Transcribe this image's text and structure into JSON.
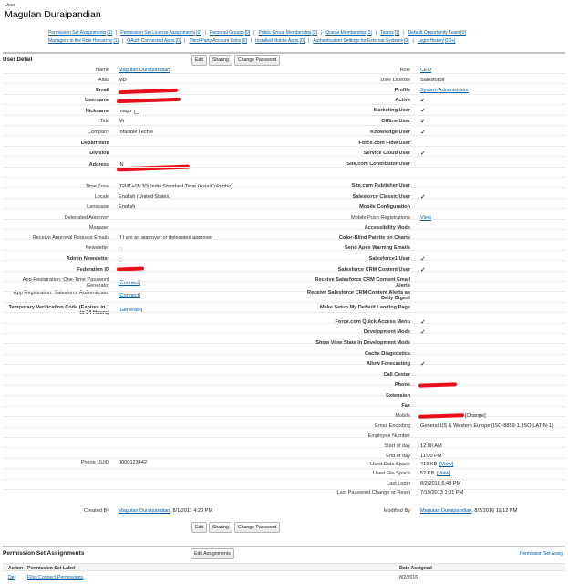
{
  "header": {
    "sub": "User",
    "title": "Magulan Duraipandian"
  },
  "related_links": {
    "row1": [
      {
        "label": "Permission Set Assignments",
        "count": "[1]"
      },
      {
        "label": "Permission Set License Assignments",
        "count": "[0]"
      },
      {
        "label": "Personal Groups",
        "count": "[0]"
      },
      {
        "label": "Public Group Membership",
        "count": "[3]"
      },
      {
        "label": "Queue Membership",
        "count": "[1]"
      },
      {
        "label": "Teams",
        "count": "[1]"
      },
      {
        "label": "Default Opportunity Team",
        "count": "[0]"
      }
    ],
    "row2": [
      {
        "label": "Managers in the Role Hierarchy",
        "count": "[1]"
      },
      {
        "label": "OAuth Connected Apps",
        "count": "[0]"
      },
      {
        "label": "Third-Party Account Links",
        "count": "[0]"
      },
      {
        "label": "Installed Mobile Apps",
        "count": "[0]"
      },
      {
        "label": "Authentication Settings for External Systems",
        "count": "[0]"
      },
      {
        "label": "Login History",
        "count": "[10+]"
      }
    ]
  },
  "section_title": "User Detail",
  "buttons": {
    "edit": "Edit",
    "sharing": "Sharing",
    "change_password": "Change Password"
  },
  "left_fields": [
    {
      "label": "Name",
      "value": "Magulan Duraipandian"
    },
    {
      "label": "Alias",
      "value": "MD"
    },
    {
      "label": "Email",
      "value": ""
    },
    {
      "label": "Username",
      "value": ""
    },
    {
      "label": "Nickname",
      "value": "magu"
    },
    {
      "label": "Title",
      "value": "Mr"
    },
    {
      "label": "Company",
      "value": "Infallible Techie"
    },
    {
      "label": "Department",
      "value": ""
    },
    {
      "label": "Division",
      "value": ""
    },
    {
      "label": "Address",
      "value": "IN"
    },
    {
      "label": "Time Zone",
      "value": "(GMT+05:30) India Standard Time (Asia/Colombo)"
    },
    {
      "label": "Locale",
      "value": "English (United States)"
    },
    {
      "label": "Language",
      "value": "English"
    },
    {
      "label": "Delegated Approver",
      "value": ""
    },
    {
      "label": "Manager",
      "value": ""
    },
    {
      "label": "Receive Approval Request Emails",
      "value": "If I am an approver or delegated approver"
    },
    {
      "label": "Newsletter",
      "value": ""
    },
    {
      "label": "Admin Newsletter",
      "value": ""
    },
    {
      "label": "Federation ID",
      "value": ""
    },
    {
      "label": "App Registration: One-Time Password Generator",
      "value": "[Connect]"
    },
    {
      "label": "App Registration: Salesforce Authenticator",
      "value": "[Connect]"
    },
    {
      "label": "Temporary Verification Code (Expires in 1 to 24 Hours)",
      "value": "[Generate]"
    }
  ],
  "right_fields": [
    {
      "label": "Role",
      "value": "CEO"
    },
    {
      "label": "User License",
      "value": "Salesforce"
    },
    {
      "label": "Profile",
      "value": "System Administrator"
    },
    {
      "label": "Active",
      "value": ""
    },
    {
      "label": "Marketing User",
      "value": ""
    },
    {
      "label": "Offline User",
      "value": ""
    },
    {
      "label": "Knowledge User",
      "value": ""
    },
    {
      "label": "Force.com Flow User",
      "value": ""
    },
    {
      "label": "Service Cloud User",
      "value": ""
    },
    {
      "label": "Site.com Contributor User",
      "value": ""
    },
    {
      "label": "Site.com Publisher User",
      "value": ""
    },
    {
      "label": "Salesforce Classic User",
      "value": ""
    },
    {
      "label": "Mobile Configuration",
      "value": ""
    },
    {
      "label": "Mobile Push Registrations",
      "value": "View"
    },
    {
      "label": "Accessibility Mode",
      "value": ""
    },
    {
      "label": "Color-Blind Palette on Charts",
      "value": ""
    },
    {
      "label": "Send Apex Warning Emails",
      "value": ""
    },
    {
      "label": "Salesforce1 User",
      "value": ""
    },
    {
      "label": "Salesforce CRM Content User",
      "value": ""
    },
    {
      "label": "Receive Salesforce CRM Content Email Alerts",
      "value": ""
    },
    {
      "label": "Receive Salesforce CRM Content Alerts as Daily Digest",
      "value": ""
    },
    {
      "label": "Make Setup My Default Landing Page",
      "value": ""
    },
    {
      "label": "Force.com Quick Access Menu",
      "value": ""
    },
    {
      "label": "Development Mode",
      "value": ""
    },
    {
      "label": "Show View State in Development Mode",
      "value": ""
    },
    {
      "label": "Cache Diagnostics",
      "value": ""
    },
    {
      "label": "Allow Forecasting",
      "value": ""
    },
    {
      "label": "Call Center",
      "value": ""
    },
    {
      "label": "Phone",
      "value": ""
    },
    {
      "label": "Extension",
      "value": ""
    },
    {
      "label": "Fax",
      "value": ""
    },
    {
      "label": "Mobile",
      "value": "[Change]"
    },
    {
      "label": "Email Encoding",
      "value": "General US & Western Europe (ISO-8859-1, ISO-LATIN-1)"
    },
    {
      "label": "Employee Number",
      "value": ""
    },
    {
      "label": "Start of day",
      "value": "12:00 AM"
    },
    {
      "label": "End of day",
      "value": "11:00 PM"
    },
    {
      "label": "Used Data Space",
      "value": "419 KB"
    },
    {
      "label": "Used File Space",
      "value": "52 KB"
    },
    {
      "label": "Last Login",
      "value": "8/2/2016 6:48 PM"
    },
    {
      "label": "Last Password Change or Reset",
      "value": "7/19/2013 1:01 PM"
    }
  ],
  "view_link": "[View]",
  "phone_uuid": {
    "label": "Phone UUID",
    "value": "0000123442"
  },
  "created_by": {
    "label": "Created By",
    "name": "Magulan Duraipandian",
    "date": ", 8/1/2011 4:20 PM"
  },
  "modified_by": {
    "label": "Modified By",
    "name": "Magulan Duraipandian",
    "date": ", 8/2/2016 11:12 PM"
  },
  "psa": {
    "title": "Permission Set Assignments",
    "edit_button": "Edit Assignments",
    "help": "Permission Set Assig",
    "headers": {
      "action": "Action",
      "label": "Permission Set Label",
      "date": "Date Assigned"
    },
    "rows": [
      {
        "action": "Del",
        "label": "Fliss Connect Permissions",
        "date": "8/2/2016"
      }
    ]
  }
}
